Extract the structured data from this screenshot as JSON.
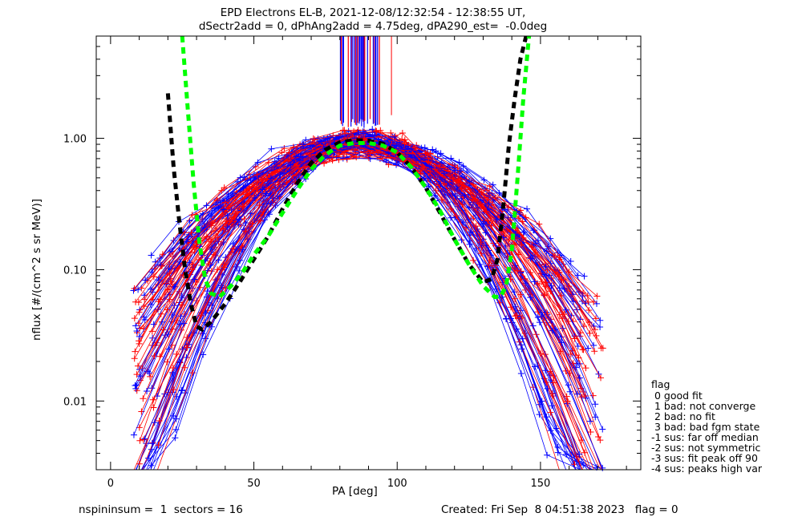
{
  "header": {
    "title_line1": "EPD Electrons EL-B, 2021-12-08/12:32:54 - 12:38:55 UT,",
    "title_line2": "dSectr2add = 0, dPhAng2add = 4.75deg, dPA290_est=  -0.0deg"
  },
  "footer": {
    "left": "nspininsum =  1  sectors = 16",
    "right": "Created: Fri Sep  8 04:51:38 2023   flag = 0"
  },
  "flag_legend": {
    "title": "flag",
    "items": [
      " 0 good fit",
      " 1 bad: not converge",
      " 2 bad: no fit",
      " 3 bad: bad fgm state",
      "-1 sus: far off median",
      "-2 sus: not symmetric",
      "-3 sus: fit peak off 90",
      "-4 sus: peaks high var"
    ]
  },
  "colors": {
    "red": "#ff0000",
    "blue": "#0000ff",
    "green": "#00ff00",
    "black": "#000000"
  },
  "chart_data": {
    "type": "line",
    "xlabel": "PA [deg]",
    "ylabel": "nflux [#/(cm^2 s sr MeV)]",
    "xlim": [
      -5,
      185
    ],
    "ylim": [
      0.003,
      6
    ],
    "yscale": "log",
    "xticks": [
      0,
      50,
      100,
      150
    ],
    "xtick_labels": [
      "0",
      "50",
      "100",
      "150"
    ],
    "yticks": [
      0.01,
      0.1,
      1.0
    ],
    "ytick_labels": [
      "0.01",
      "0.10",
      "1.00"
    ],
    "series": [
      {
        "style": "thick-dashed",
        "color": "black",
        "x": [
          20,
          22,
          24,
          26,
          28,
          30,
          32,
          35,
          40,
          45,
          50,
          55,
          60,
          65,
          70,
          75,
          80,
          85,
          90,
          95,
          100,
          105,
          110,
          115,
          120,
          125,
          130,
          133,
          135,
          137,
          139,
          141,
          143,
          145
        ],
        "y": [
          2.2,
          0.6,
          0.23,
          0.1,
          0.055,
          0.037,
          0.035,
          0.04,
          0.055,
          0.08,
          0.12,
          0.18,
          0.29,
          0.45,
          0.65,
          0.82,
          0.93,
          0.97,
          0.96,
          0.91,
          0.78,
          0.6,
          0.42,
          0.27,
          0.17,
          0.11,
          0.08,
          0.085,
          0.12,
          0.3,
          0.9,
          2.0,
          4.0,
          6.0
        ]
      },
      {
        "style": "thick-dashed",
        "color": "green",
        "x": [
          25,
          27,
          29,
          31,
          33,
          35,
          38,
          42,
          46,
          50,
          55,
          60,
          65,
          70,
          75,
          80,
          85,
          90,
          95,
          100,
          105,
          110,
          115,
          120,
          125,
          130,
          134,
          136,
          138,
          140,
          142,
          144,
          146
        ],
        "y": [
          6,
          1.6,
          0.45,
          0.16,
          0.085,
          0.066,
          0.062,
          0.075,
          0.095,
          0.13,
          0.18,
          0.27,
          0.4,
          0.58,
          0.75,
          0.88,
          0.92,
          0.92,
          0.88,
          0.78,
          0.6,
          0.42,
          0.28,
          0.17,
          0.11,
          0.075,
          0.062,
          0.062,
          0.075,
          0.14,
          0.5,
          2.0,
          6.0
        ]
      }
    ],
    "scatter_curves": {
      "description": "many red and blue measured pitch-angle distributions with + markers",
      "count_red": 50,
      "count_blue": 50
    }
  }
}
